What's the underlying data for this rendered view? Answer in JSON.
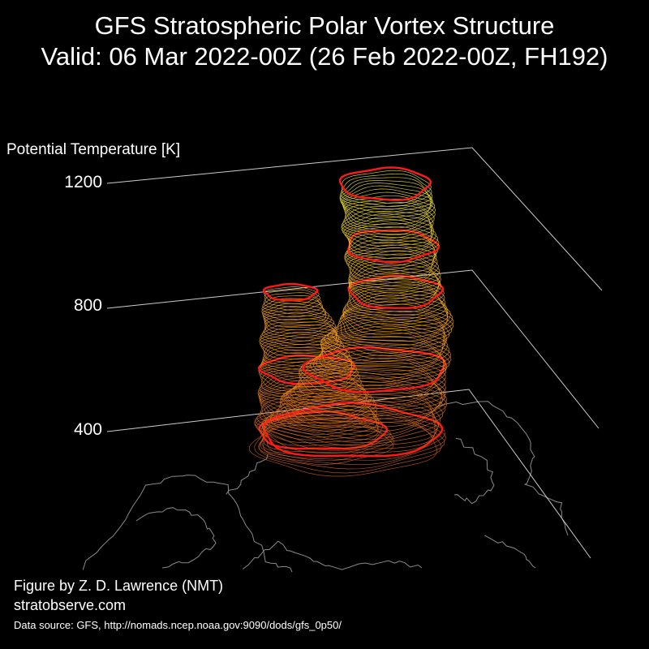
{
  "title": {
    "line1": "GFS Stratospheric Polar Vortex Structure",
    "line2": "Valid: 06 Mar 2022-00Z  (26 Feb 2022-00Z, FH192)"
  },
  "credits": {
    "figure_by": "Figure by Z. D. Lawrence (NMT)",
    "website": "stratobserve.com",
    "data_source": "Data source: GFS, http://nomads.ncep.noaa.gov:9090/dods/gfs_0p50/"
  },
  "colors": {
    "background": "#000000",
    "axis": "#cccccc",
    "coastline": "#8a8a8a",
    "highlight_contour": "#ff1a1a",
    "low_level": "#c85a1e",
    "mid_level": "#ffa41a",
    "high_level": "#f2ee3c"
  },
  "chart_data": {
    "type": "3d-isosurface",
    "zlabel": "Potential Temperature [K]",
    "zticks": [
      "1200",
      "800",
      "400"
    ],
    "zvalues": [
      1200,
      800,
      400
    ],
    "highlighted_levels": [
      400,
      600,
      850,
      1000,
      1200
    ],
    "colormap": "theta: orange (low) to yellow (high)",
    "features": [
      {
        "name": "main vortex lobe",
        "theta_min": 350,
        "theta_max": 1200
      },
      {
        "name": "secondary vortex lobe",
        "theta_min": 350,
        "theta_max": 850
      }
    ]
  }
}
